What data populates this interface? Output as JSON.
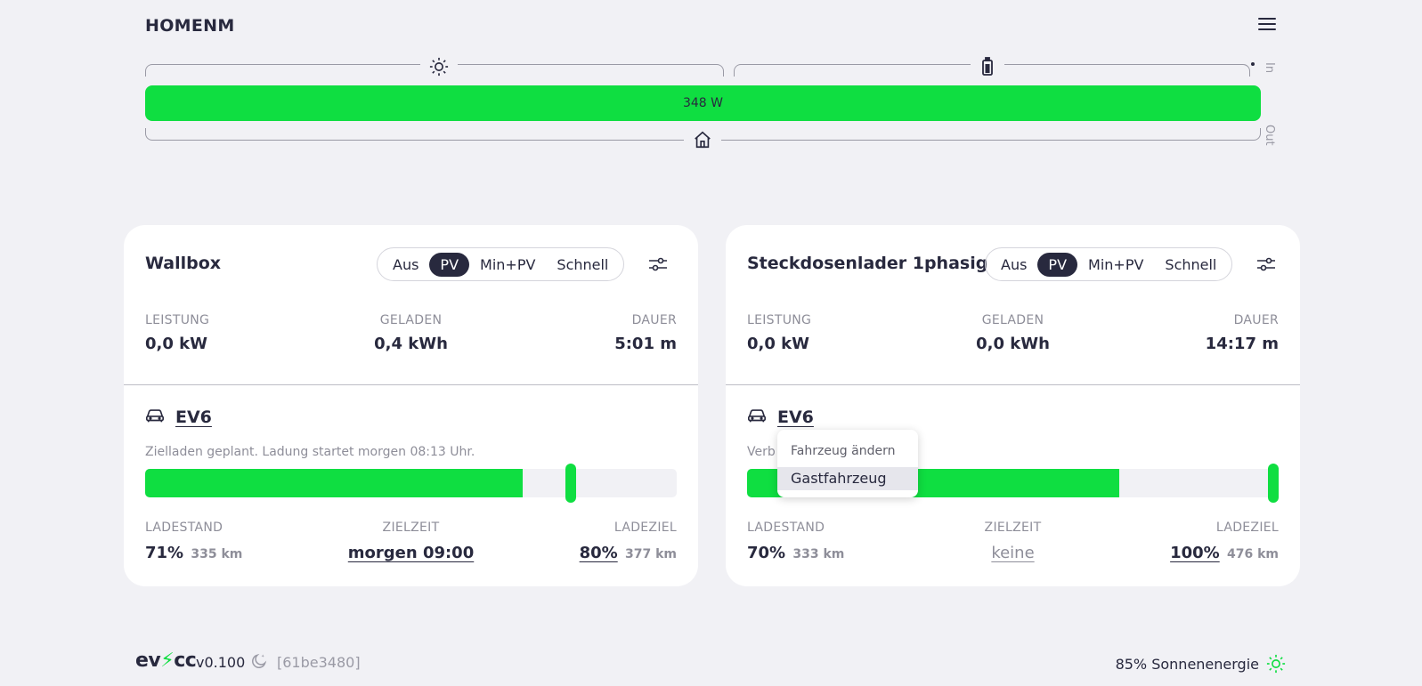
{
  "header": {
    "site_title": "HOMENM"
  },
  "energyflow": {
    "power_label": "348 W",
    "in_label": "In",
    "out_label": "Out",
    "icons": {
      "pv": "sun-icon",
      "battery": "battery-icon",
      "home": "home-icon"
    }
  },
  "loadpoints": [
    {
      "title": "Wallbox",
      "modes": [
        "Aus",
        "PV",
        "Min+PV",
        "Schnell"
      ],
      "active_mode": "PV",
      "metrics": [
        {
          "label": "LEISTUNG",
          "value": "0,0 kW"
        },
        {
          "label": "GELADEN",
          "value": "0,4 kWh"
        },
        {
          "label": "DAUER",
          "value": "5:01 m"
        }
      ],
      "vehicle": {
        "name": "EV6",
        "icon": "car-icon"
      },
      "status": "Zielladen geplant. Ladung startet morgen 08:13 Uhr.",
      "soc_percent": 71,
      "target_percent": 80,
      "ladestand": {
        "label": "LADESTAND",
        "value": "71%",
        "range": "335 km"
      },
      "zielzeit": {
        "label": "ZIELZEIT",
        "value": "morgen 09:00"
      },
      "ladeziel": {
        "label": "LADEZIEL",
        "value": "80%",
        "range": "377 km"
      }
    },
    {
      "title": "Steckdosenlader 1phasig",
      "modes": [
        "Aus",
        "PV",
        "Min+PV",
        "Schnell"
      ],
      "active_mode": "PV",
      "metrics": [
        {
          "label": "LEISTUNG",
          "value": "0,0 kW"
        },
        {
          "label": "GELADEN",
          "value": "0,0 kWh"
        },
        {
          "label": "DAUER",
          "value": "14:17 m"
        }
      ],
      "vehicle": {
        "name": "EV6",
        "icon": "car-icon"
      },
      "status": "Verb",
      "soc_percent": 70,
      "target_percent": 100,
      "ladestand": {
        "label": "LADESTAND",
        "value": "70%",
        "range": "333 km"
      },
      "zielzeit": {
        "label": "ZIELZEIT",
        "value": "keine"
      },
      "ladeziel": {
        "label": "LADEZIEL",
        "value": "100%",
        "range": "476 km"
      }
    }
  ],
  "vehicle_dropdown": {
    "header": "Fahrzeug ändern",
    "items": [
      "Gastfahrzeug"
    ]
  },
  "footer": {
    "brand_prefix": "ev",
    "brand_bolt": "⚡",
    "brand_suffix": "cc",
    "version": "v0.100",
    "commit": "[61be3480]",
    "solar_share": "85% Sonnenenergie"
  },
  "colors": {
    "accent_green": "#0fde41",
    "dark": "#28293e",
    "muted": "#8e8e99",
    "background": "#f1f1f5"
  }
}
